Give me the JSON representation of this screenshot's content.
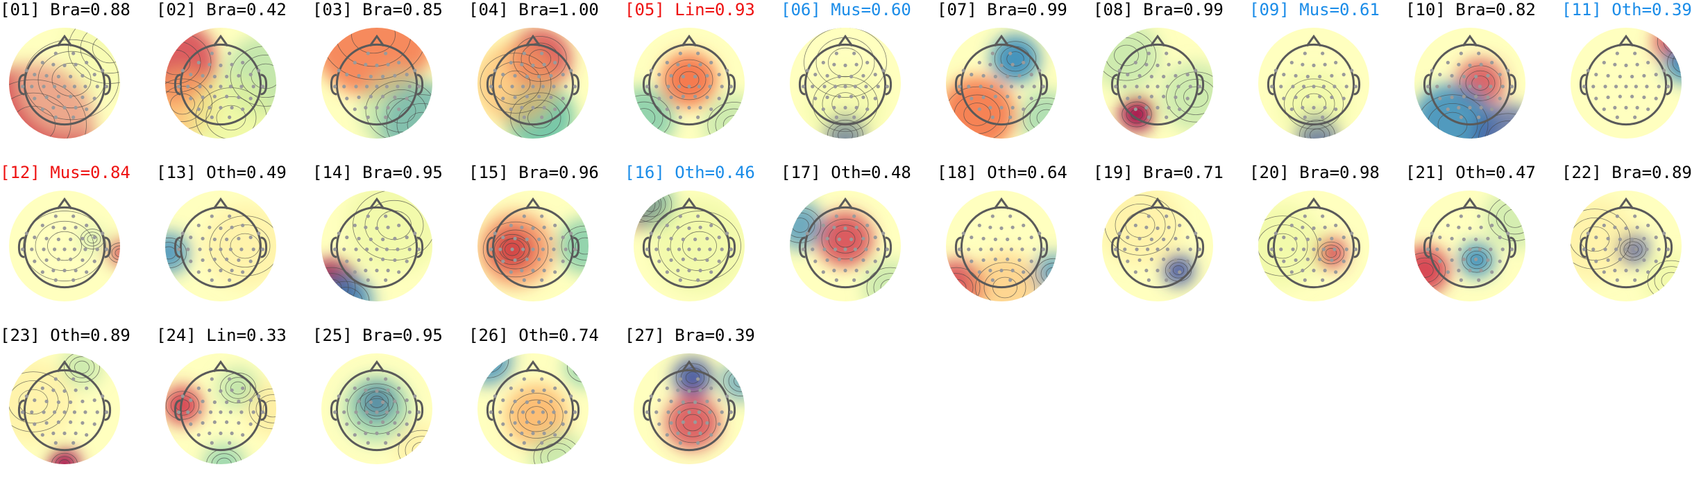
{
  "figure": {
    "colors": {
      "default": "#000000",
      "red": "#ee1111",
      "blue": "#1a8ce8",
      "head_outline": "#5a5a5a",
      "sensor": "#9a9a9a",
      "contour": "#444444"
    },
    "colormap": [
      "#3b4fa0",
      "#3288bd",
      "#66c2a5",
      "#abdda4",
      "#e6f598",
      "#ffffbf",
      "#fee08b",
      "#fdae61",
      "#f46d43",
      "#d53e4f",
      "#9e0142"
    ],
    "panels": [
      {
        "index": "01",
        "title": "[01] Bra=0.88",
        "label": "Bra",
        "score": 0.88,
        "color": "default",
        "icon": "topomap-icon"
      },
      {
        "index": "02",
        "title": "[02] Bra=0.42",
        "label": "Bra",
        "score": 0.42,
        "color": "default",
        "icon": "topomap-icon"
      },
      {
        "index": "03",
        "title": "[03] Bra=0.85",
        "label": "Bra",
        "score": 0.85,
        "color": "default",
        "icon": "topomap-icon"
      },
      {
        "index": "04",
        "title": "[04] Bra=1.00",
        "label": "Bra",
        "score": 1.0,
        "color": "default",
        "icon": "topomap-icon"
      },
      {
        "index": "05",
        "title": "[05] Lin=0.93",
        "label": "Lin",
        "score": 0.93,
        "color": "red",
        "icon": "topomap-icon"
      },
      {
        "index": "06",
        "title": "[06] Mus=0.60",
        "label": "Mus",
        "score": 0.6,
        "color": "blue",
        "icon": "topomap-icon"
      },
      {
        "index": "07",
        "title": "[07] Bra=0.99",
        "label": "Bra",
        "score": 0.99,
        "color": "default",
        "icon": "topomap-icon"
      },
      {
        "index": "08",
        "title": "[08] Bra=0.99",
        "label": "Bra",
        "score": 0.99,
        "color": "default",
        "icon": "topomap-icon"
      },
      {
        "index": "09",
        "title": "[09] Mus=0.61",
        "label": "Mus",
        "score": 0.61,
        "color": "blue",
        "icon": "topomap-icon"
      },
      {
        "index": "10",
        "title": "[10] Bra=0.82",
        "label": "Bra",
        "score": 0.82,
        "color": "default",
        "icon": "topomap-icon"
      },
      {
        "index": "11",
        "title": "[11] Oth=0.39",
        "label": "Oth",
        "score": 0.39,
        "color": "blue",
        "icon": "topomap-icon"
      },
      {
        "index": "12",
        "title": "[12] Mus=0.84",
        "label": "Mus",
        "score": 0.84,
        "color": "red",
        "icon": "topomap-icon"
      },
      {
        "index": "13",
        "title": "[13] Oth=0.49",
        "label": "Oth",
        "score": 0.49,
        "color": "default",
        "icon": "topomap-icon"
      },
      {
        "index": "14",
        "title": "[14] Bra=0.95",
        "label": "Bra",
        "score": 0.95,
        "color": "default",
        "icon": "topomap-icon"
      },
      {
        "index": "15",
        "title": "[15] Bra=0.96",
        "label": "Bra",
        "score": 0.96,
        "color": "default",
        "icon": "topomap-icon"
      },
      {
        "index": "16",
        "title": "[16] Oth=0.46",
        "label": "Oth",
        "score": 0.46,
        "color": "blue",
        "icon": "topomap-icon"
      },
      {
        "index": "17",
        "title": "[17] Oth=0.48",
        "label": "Oth",
        "score": 0.48,
        "color": "default",
        "icon": "topomap-icon"
      },
      {
        "index": "18",
        "title": "[18] Oth=0.64",
        "label": "Oth",
        "score": 0.64,
        "color": "default",
        "icon": "topomap-icon"
      },
      {
        "index": "19",
        "title": "[19] Bra=0.71",
        "label": "Bra",
        "score": 0.71,
        "color": "default",
        "icon": "topomap-icon"
      },
      {
        "index": "20",
        "title": "[20] Bra=0.98",
        "label": "Bra",
        "score": 0.98,
        "color": "default",
        "icon": "topomap-icon"
      },
      {
        "index": "21",
        "title": "[21] Oth=0.47",
        "label": "Oth",
        "score": 0.47,
        "color": "default",
        "icon": "topomap-icon"
      },
      {
        "index": "22",
        "title": "[22] Bra=0.89",
        "label": "Bra",
        "score": 0.89,
        "color": "default",
        "icon": "topomap-icon"
      },
      {
        "index": "23",
        "title": "[23] Oth=0.89",
        "label": "Oth",
        "score": 0.89,
        "color": "default",
        "icon": "topomap-icon"
      },
      {
        "index": "24",
        "title": "[24] Lin=0.33",
        "label": "Lin",
        "score": 0.33,
        "color": "default",
        "icon": "topomap-icon"
      },
      {
        "index": "25",
        "title": "[25] Bra=0.95",
        "label": "Bra",
        "score": 0.95,
        "color": "default",
        "icon": "topomap-icon"
      },
      {
        "index": "26",
        "title": "[26] Oth=0.74",
        "label": "Oth",
        "score": 0.74,
        "color": "default",
        "icon": "topomap-icon"
      },
      {
        "index": "27",
        "title": "[27] Bra=0.39",
        "label": "Bra",
        "score": 0.39,
        "color": "default",
        "icon": "topomap-icon"
      }
    ]
  },
  "chart_data": {
    "type": "heatmap",
    "panel_count": 27,
    "panel_labels": [
      "[01] Bra=0.88",
      "[02] Bra=0.42",
      "[03] Bra=0.85",
      "[04] Bra=1.00",
      "[05] Lin=0.93",
      "[06] Mus=0.60",
      "[07] Bra=0.99",
      "[08] Bra=0.99",
      "[09] Mus=0.61",
      "[10] Bra=0.82",
      "[11] Oth=0.39",
      "[12] Mus=0.84",
      "[13] Oth=0.49",
      "[14] Bra=0.95",
      "[15] Bra=0.96",
      "[16] Oth=0.46",
      "[17] Oth=0.48",
      "[18] Oth=0.64",
      "[19] Bra=0.71",
      "[20] Bra=0.98",
      "[21] Oth=0.47",
      "[22] Bra=0.89",
      "[23] Oth=0.89",
      "[24] Lin=0.33",
      "[25] Bra=0.95",
      "[26] Oth=0.74",
      "[27] Bra=0.39"
    ],
    "classes": [
      "Bra",
      "Bra",
      "Bra",
      "Bra",
      "Lin",
      "Mus",
      "Bra",
      "Bra",
      "Mus",
      "Bra",
      "Oth",
      "Mus",
      "Oth",
      "Bra",
      "Bra",
      "Oth",
      "Oth",
      "Oth",
      "Bra",
      "Bra",
      "Oth",
      "Bra",
      "Oth",
      "Lin",
      "Bra",
      "Oth",
      "Bra"
    ],
    "scores": [
      0.88,
      0.42,
      0.85,
      1.0,
      0.93,
      0.6,
      0.99,
      0.99,
      0.61,
      0.82,
      0.39,
      0.84,
      0.49,
      0.95,
      0.96,
      0.46,
      0.48,
      0.64,
      0.71,
      0.98,
      0.47,
      0.89,
      0.89,
      0.33,
      0.95,
      0.74,
      0.39
    ],
    "colormap": "RdYlBu_r (spectral)",
    "grid": false,
    "legend": "none"
  }
}
